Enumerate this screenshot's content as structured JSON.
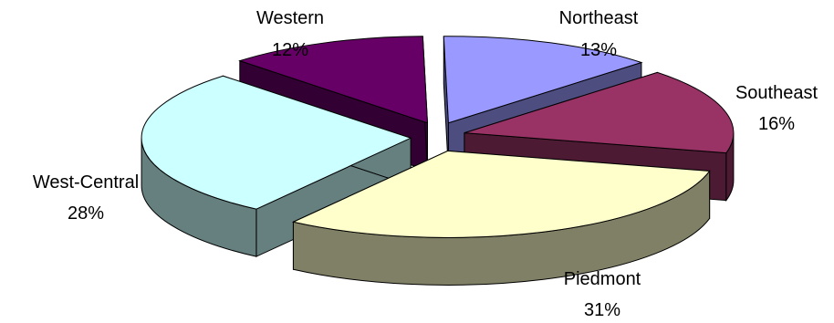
{
  "chart_data": {
    "type": "pie",
    "style": "3d-exploded",
    "slices": [
      {
        "name": "Northeast",
        "value": 13,
        "percent_label": "13%",
        "top_color": "#9999ff",
        "side_color": "#4d4d80"
      },
      {
        "name": "Southeast",
        "value": 16,
        "percent_label": "16%",
        "top_color": "#993366",
        "side_color": "#4d1a33"
      },
      {
        "name": "Piedmont",
        "value": 31,
        "percent_label": "31%",
        "top_color": "#ffffcc",
        "side_color": "#808066"
      },
      {
        "name": "West-Central",
        "value": 28,
        "percent_label": "28%",
        "top_color": "#ccffff",
        "side_color": "#668080"
      },
      {
        "name": "Western",
        "value": 12,
        "percent_label": "12%",
        "top_color": "#660066",
        "side_color": "#330033"
      }
    ]
  }
}
